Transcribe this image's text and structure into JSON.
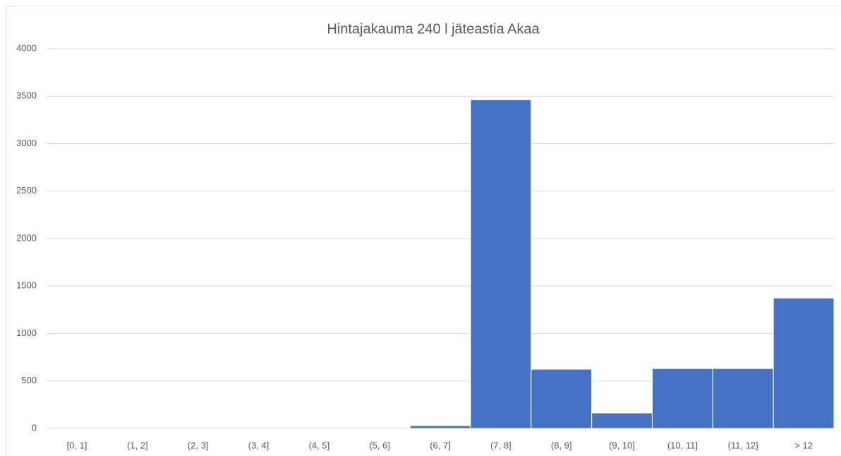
{
  "chart_data": {
    "type": "bar",
    "title": "Hintajakauma 240 l jäteastia Akaa",
    "categories": [
      "[0, 1]",
      "(1, 2]",
      "(2, 3]",
      "(3, 4]",
      "(4, 5]",
      "(5, 6]",
      "(6, 7]",
      "(7, 8]",
      "(8, 9]",
      "(9, 10]",
      "(10, 11]",
      "(11, 12]",
      "> 12"
    ],
    "values": [
      0,
      0,
      0,
      0,
      0,
      0,
      30,
      3462,
      624,
      163,
      631,
      631,
      1374
    ],
    "color": "#4472c4",
    "ylim": [
      0,
      4000
    ],
    "yticks": [
      0,
      500,
      1000,
      1500,
      2000,
      2500,
      3000,
      3500,
      4000
    ],
    "grid": true
  }
}
